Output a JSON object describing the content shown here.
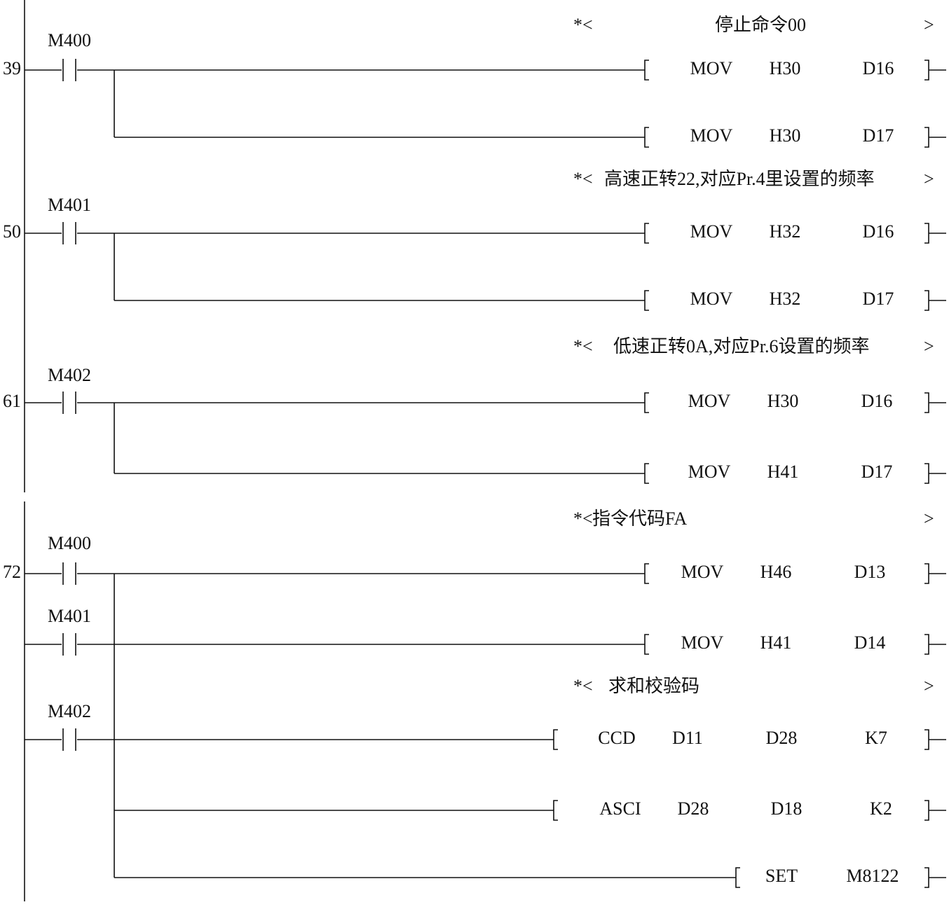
{
  "rungs": [
    {
      "step": "39",
      "comments": [
        {
          "prefix": "*<",
          "text": "停止命令00",
          "suffix": ">"
        }
      ],
      "contacts": [
        "M400"
      ],
      "instructions": [
        [
          "MOV",
          "H30",
          "D16"
        ],
        [
          "MOV",
          "H30",
          "D17"
        ]
      ]
    },
    {
      "step": "50",
      "comments": [
        {
          "prefix": "*<",
          "text": "高速正转22,对应Pr.4里设置的频率",
          "suffix": ">"
        }
      ],
      "contacts": [
        "M401"
      ],
      "instructions": [
        [
          "MOV",
          "H32",
          "D16"
        ],
        [
          "MOV",
          "H32",
          "D17"
        ]
      ]
    },
    {
      "step": "61",
      "comments": [
        {
          "prefix": "*<",
          "text": "低速正转0A,对应Pr.6设置的频率",
          "suffix": ">"
        }
      ],
      "contacts": [
        "M402"
      ],
      "instructions": [
        [
          "MOV",
          "H30",
          "D16"
        ],
        [
          "MOV",
          "H41",
          "D17"
        ]
      ]
    },
    {
      "step": "72",
      "comments": [
        {
          "prefix": "*<",
          "text": "指令代码FA",
          "suffix": ">"
        },
        {
          "prefix": "*<",
          "text": "求和校验码",
          "suffix": ">"
        }
      ],
      "contacts": [
        "M400",
        "M401",
        "M402"
      ],
      "instructions": [
        [
          "MOV",
          "H46",
          "D13"
        ],
        [
          "MOV",
          "H41",
          "D14"
        ],
        [
          "CCD",
          "D11",
          "D28",
          "K7"
        ],
        [
          "ASCI",
          "D28",
          "D18",
          "K2"
        ],
        [
          "SET",
          "M8122"
        ]
      ]
    }
  ]
}
